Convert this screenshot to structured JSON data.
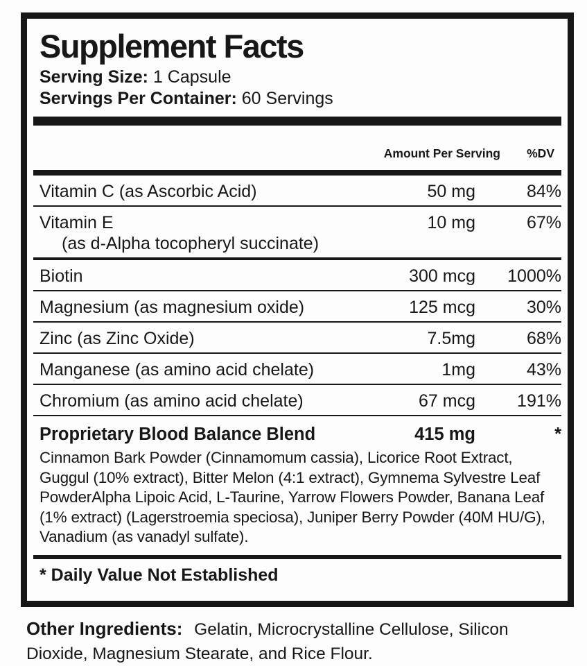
{
  "label": {
    "title": "Supplement Facts",
    "serving_size_label": "Serving Size:",
    "serving_size_value": "1 Capsule",
    "servings_per_container_label": "Servings Per Container:",
    "servings_per_container_value": "60 Servings",
    "columns": {
      "amount_header": "Amount Per Serving",
      "dv_header": "%DV"
    },
    "rows": [
      {
        "name": "Vitamin C (as Ascorbic Acid)",
        "amount": "50 mg",
        "dv": "84%"
      },
      {
        "name": "Vitamin E",
        "name_line2": "(as d-Alpha tocopheryl succinate)",
        "amount": "10 mg",
        "dv": "67%"
      },
      {
        "name": "Biotin",
        "amount": "300 mcg",
        "dv": "1000%"
      },
      {
        "name": "Magnesium (as magnesium oxide)",
        "amount": "125 mcg",
        "dv": "30%"
      },
      {
        "name": "Zinc (as Zinc Oxide)",
        "amount": "7.5mg",
        "dv": "68%"
      },
      {
        "name": "Manganese (as amino acid chelate)",
        "amount": "1mg",
        "dv": "43%"
      },
      {
        "name": "Chromium (as amino acid chelate)",
        "amount": "67 mcg",
        "dv": "191%"
      }
    ],
    "blend": {
      "name": "Proprietary Blood Balance Blend",
      "amount": "415 mg",
      "dv": "*",
      "description": "Cinnamon Bark Powder (Cinnamomum cassia), Licorice Root Extract, Guggul (10% extract), Bitter Melon (4:1 extract), Gymnema Sylvestre Leaf PowderAlpha Lipoic Acid, L-Taurine, Yarrow Flowers Powder, Banana Leaf (1% extract) (Lagerstroemia speciosa), Juniper Berry Powder (40M HU/G), Vanadium (as vanadyl sulfate)."
    },
    "footnote": "* Daily Value Not Established",
    "other_ingredients_label": "Other Ingredients:",
    "other_ingredients_value": "Gelatin, Microcrystalline Cellulose, Silicon Dioxide, Magnesium Stearate, and Rice Flour."
  },
  "colors": {
    "ink": "#171717",
    "background": "#fdfdfd"
  }
}
